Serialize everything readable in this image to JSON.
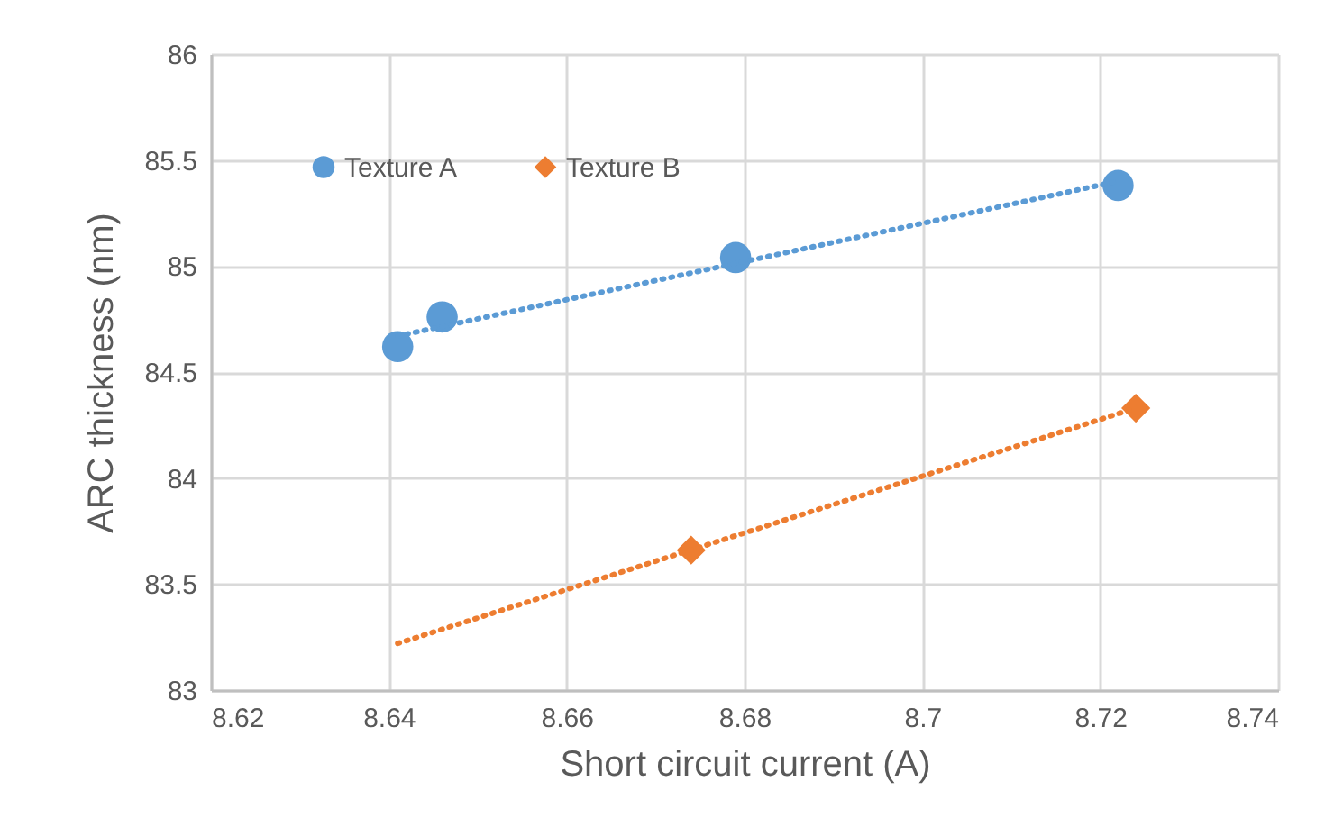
{
  "chart_data": {
    "type": "scatter",
    "xlabel": "Short circuit current (A)",
    "ylabel": "ARC thickness (nm)",
    "xlim": [
      8.62,
      8.74
    ],
    "xticks": [
      8.62,
      8.64,
      8.66,
      8.68,
      8.7,
      8.72,
      8.74
    ],
    "ylim": [
      83,
      86
    ],
    "yticks": [
      83,
      83.5,
      84,
      84.5,
      85,
      85.5,
      86
    ],
    "grid": true,
    "legend": "top left",
    "series": [
      {
        "name": "Texture A",
        "color": "#5b9bd5",
        "marker": "circle",
        "x": [
          8.641,
          8.646,
          8.679,
          8.722
        ],
        "values": [
          84.62,
          84.76,
          85.04,
          85.38
        ]
      },
      {
        "name": "Texture B",
        "color": "#ed7d31",
        "marker": "diamond",
        "x": [
          8.674,
          8.724
        ],
        "values": [
          83.66,
          84.33
        ]
      },
      {
        "type": "line",
        "color": "#5b9bd5",
        "line_style": "dotted",
        "x": [
          8.641,
          8.722
        ],
        "values": [
          84.67,
          85.4
        ]
      },
      {
        "type": "line",
        "color": "#ed7d31",
        "line_style": "dotted",
        "x": [
          8.641,
          8.724
        ],
        "values": [
          83.22,
          84.33
        ]
      }
    ]
  }
}
